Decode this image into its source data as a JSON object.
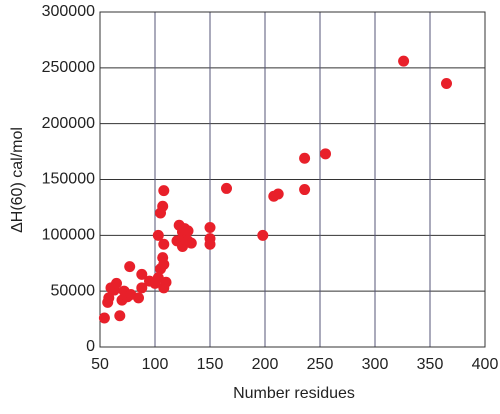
{
  "chart_data": {
    "type": "scatter",
    "x_label": "Number residues",
    "y_label": "ΔH(60)   cal/mol",
    "x": [
      54,
      57,
      58,
      60,
      63,
      65,
      68,
      70,
      72,
      75,
      77,
      78,
      85,
      88,
      88,
      95,
      100,
      103,
      103,
      105,
      105,
      107,
      107,
      108,
      108,
      108,
      108,
      110,
      120,
      122,
      125,
      125,
      127,
      128,
      130,
      130,
      133,
      150,
      150,
      150,
      165,
      198,
      208,
      212,
      236,
      236,
      255,
      326,
      365
    ],
    "values": [
      26000,
      40000,
      44000,
      53000,
      51000,
      57000,
      28000,
      42000,
      50000,
      45000,
      72000,
      47000,
      44000,
      53000,
      65000,
      59000,
      57000,
      62000,
      100000,
      120000,
      70000,
      80000,
      126000,
      140000,
      53000,
      92000,
      74000,
      58000,
      95000,
      109000,
      103000,
      90000,
      106000,
      96000,
      104000,
      95000,
      93000,
      107000,
      97000,
      92000,
      142000,
      100000,
      135000,
      137000,
      169000,
      141000,
      173000,
      256000,
      236000
    ],
    "color": "#e8202a",
    "xlim": [
      50,
      400
    ],
    "xticks": [
      50,
      100,
      150,
      200,
      250,
      300,
      350,
      400
    ],
    "ylim": [
      0,
      300000
    ],
    "yticks": [
      0,
      50000,
      100000,
      150000,
      200000,
      250000,
      300000
    ],
    "grid": true
  }
}
